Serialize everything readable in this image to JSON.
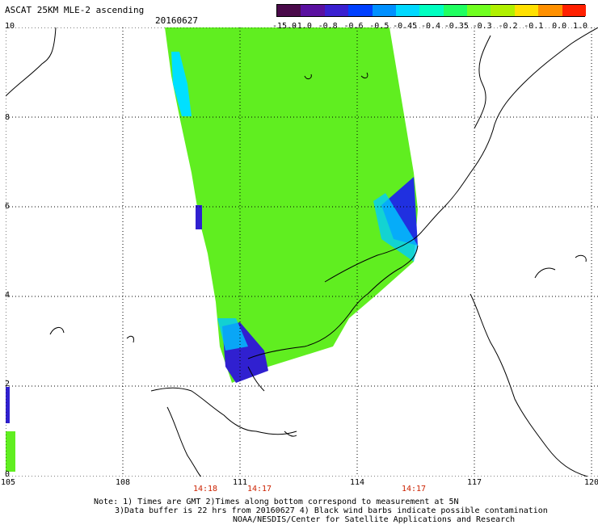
{
  "header": {
    "title": "ASCAT 25KM MLE-2 ascending",
    "date": "20160627"
  },
  "colorbar": {
    "labels": [
      "-15.0",
      "-1.0",
      "-0.8",
      "-0.6",
      "-0.5",
      "-0.45",
      "-0.4",
      "-0.35",
      "-0.3",
      "-0.2",
      "-0.1",
      "0.0",
      "1.0"
    ],
    "colors": [
      "#4a0a4a",
      "#5a10a0",
      "#3a20d0",
      "#0040ff",
      "#0090ff",
      "#00d8ff",
      "#00ffc0",
      "#20ff60",
      "#70ff20",
      "#b0f000",
      "#ffe000",
      "#ff9000",
      "#ff2000"
    ]
  },
  "axes": {
    "lon_labels": [
      "105",
      "108",
      "111",
      "114",
      "117",
      "120"
    ],
    "lat_labels": [
      "0",
      "2",
      "4",
      "6",
      "8",
      "10"
    ]
  },
  "times": [
    "14:18",
    "14:17",
    "14:17"
  ],
  "notes": {
    "line1": "Note: 1) Times are GMT 2)Times along bottom correspond to measurement at 5N",
    "line2": "3)Data buffer is 22 hrs from 20160627 4) Black wind barbs indicate possible contamination",
    "line3": "NOAA/NESDIS/Center for Satellite Applications and Research"
  }
}
